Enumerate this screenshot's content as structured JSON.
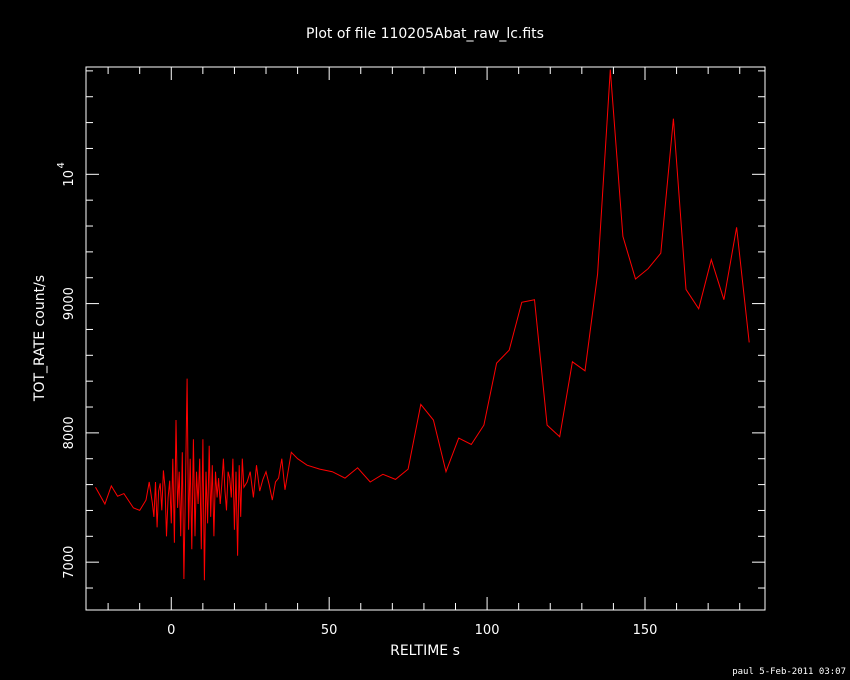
{
  "chart_data": {
    "type": "line",
    "title": "Plot of file 110205Abat_raw_lc.fits",
    "xlabel": "RELTIME  s",
    "ylabel": "TOT_RATE  count/s",
    "xlim": [
      -27,
      188
    ],
    "ylim": [
      6630,
      10830
    ],
    "x_ticks": [
      0,
      50,
      100,
      150
    ],
    "x_tick_labels": [
      "0",
      "50",
      "100",
      "150"
    ],
    "y_ticks": [
      7000,
      8000,
      9000
    ],
    "y_tick_labels": [
      "7000",
      "8000",
      "9000"
    ],
    "y_special_tick": {
      "value": 10000,
      "base": "10",
      "exp": "4"
    },
    "grid": false,
    "line_color": "#ff0000",
    "series": [
      {
        "x": [
          -24,
          -21,
          -19,
          -17,
          -15,
          -12,
          -10,
          -8,
          -7,
          -6,
          -5.5,
          -5,
          -4.5,
          -4,
          -3.5,
          -3,
          -2.5,
          -2,
          -1.5,
          -1,
          -0.5,
          0,
          0.5,
          1,
          1.5,
          2,
          2.5,
          3,
          3.5,
          4,
          4.5,
          5,
          5.5,
          6,
          6.5,
          7,
          7.5,
          8,
          8.5,
          9,
          9.5,
          10,
          10.5,
          11,
          11.5,
          12,
          12.5,
          13,
          13.5,
          14,
          14.5,
          15,
          15.5,
          16,
          16.5,
          17,
          17.5,
          18,
          18.5,
          19,
          19.5,
          20,
          20.5,
          21,
          21.5,
          22,
          22.5,
          23,
          24,
          25,
          26,
          27,
          28,
          29,
          30,
          31,
          32,
          33,
          34,
          35,
          36,
          38,
          40,
          43,
          47,
          51,
          55,
          59,
          63,
          67,
          71,
          75,
          79,
          83,
          87,
          91,
          95,
          99,
          103,
          107,
          111,
          115,
          119,
          123,
          127,
          131,
          135,
          139,
          143,
          147,
          151,
          155,
          159,
          163,
          167,
          171,
          175,
          179,
          183
        ],
        "y": [
          7580,
          7450,
          7590,
          7510,
          7530,
          7420,
          7400,
          7480,
          7620,
          7460,
          7350,
          7620,
          7270,
          7550,
          7610,
          7400,
          7710,
          7580,
          7200,
          7500,
          7630,
          7300,
          7800,
          7150,
          8100,
          7420,
          7700,
          7200,
          7850,
          6870,
          7600,
          8420,
          7250,
          7800,
          7100,
          7950,
          7200,
          7700,
          7450,
          7800,
          7100,
          7950,
          6860,
          7700,
          7300,
          7900,
          7350,
          7750,
          7200,
          7700,
          7500,
          7650,
          7450,
          7600,
          7800,
          7550,
          7400,
          7700,
          7650,
          7500,
          7800,
          7250,
          7700,
          7050,
          7750,
          7350,
          7800,
          7580,
          7620,
          7700,
          7500,
          7750,
          7550,
          7640,
          7700,
          7600,
          7480,
          7620,
          7650,
          7800,
          7560,
          7850,
          7800,
          7750,
          7720,
          7700,
          7650,
          7730,
          7620,
          7680,
          7640,
          7720,
          8220,
          8100,
          7700,
          7960,
          7910,
          8060,
          8540,
          8640,
          9010,
          9030,
          8060,
          7970,
          8550,
          8480,
          9230,
          10810,
          9520,
          9190,
          9270,
          9390,
          10430,
          9110,
          8960,
          9340,
          9030,
          9590,
          8700
        ]
      }
    ],
    "footer": "paul  5-Feb-2011 03:07"
  }
}
